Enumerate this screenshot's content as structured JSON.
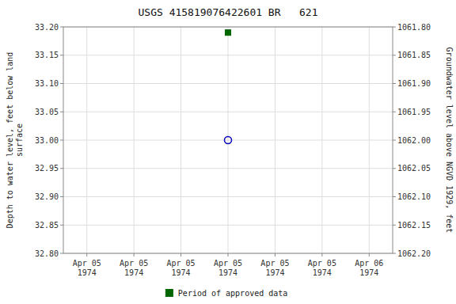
{
  "chart_data": {
    "type": "scatter",
    "title": "USGS 415819076422601 BR   621",
    "y_label": "Depth to water level, feet below land\nsurface",
    "y2_label": "Groundwater level above NGVD 1929, feet",
    "categories": [
      "Apr 05\n1974",
      "Apr 05\n1974",
      "Apr 05\n1974",
      "Apr 05\n1974",
      "Apr 05\n1974",
      "Apr 05\n1974",
      "Apr 06\n1974"
    ],
    "series": [
      {
        "color": "#0000bb",
        "marker": "circle-open",
        "values": [
          null,
          null,
          null,
          33.0,
          null,
          null,
          null
        ]
      },
      {
        "name": "Period of approved data",
        "color": "#006600",
        "marker": "square",
        "values": [
          null,
          null,
          null,
          33.19,
          null,
          null,
          null
        ]
      }
    ],
    "ylim": [
      32.8,
      33.2
    ],
    "yticks": [
      {
        "value": 32.8,
        "label": "32.80"
      },
      32.85,
      {
        "value": 32.9,
        "label": "32.90"
      },
      32.95,
      {
        "value": 33.0,
        "label": "33.00"
      },
      33.05,
      {
        "value": 33.1,
        "label": "33.10"
      },
      33.15,
      {
        "value": 33.2,
        "label": "33.20"
      }
    ],
    "y2lim": [
      1062.2,
      1061.8
    ],
    "y2ticks": [
      {
        "value": 1062.2,
        "label": "1062.20"
      },
      1062.15,
      {
        "value": 1062.1,
        "label": "1062.10"
      },
      1062.05,
      {
        "value": 1062.0,
        "label": "1062.00"
      },
      1061.95,
      {
        "value": 1061.9,
        "label": "1061.90"
      },
      1061.85,
      {
        "value": 1061.8,
        "label": "1061.80"
      }
    ],
    "grid": true,
    "legend": "bottom"
  }
}
